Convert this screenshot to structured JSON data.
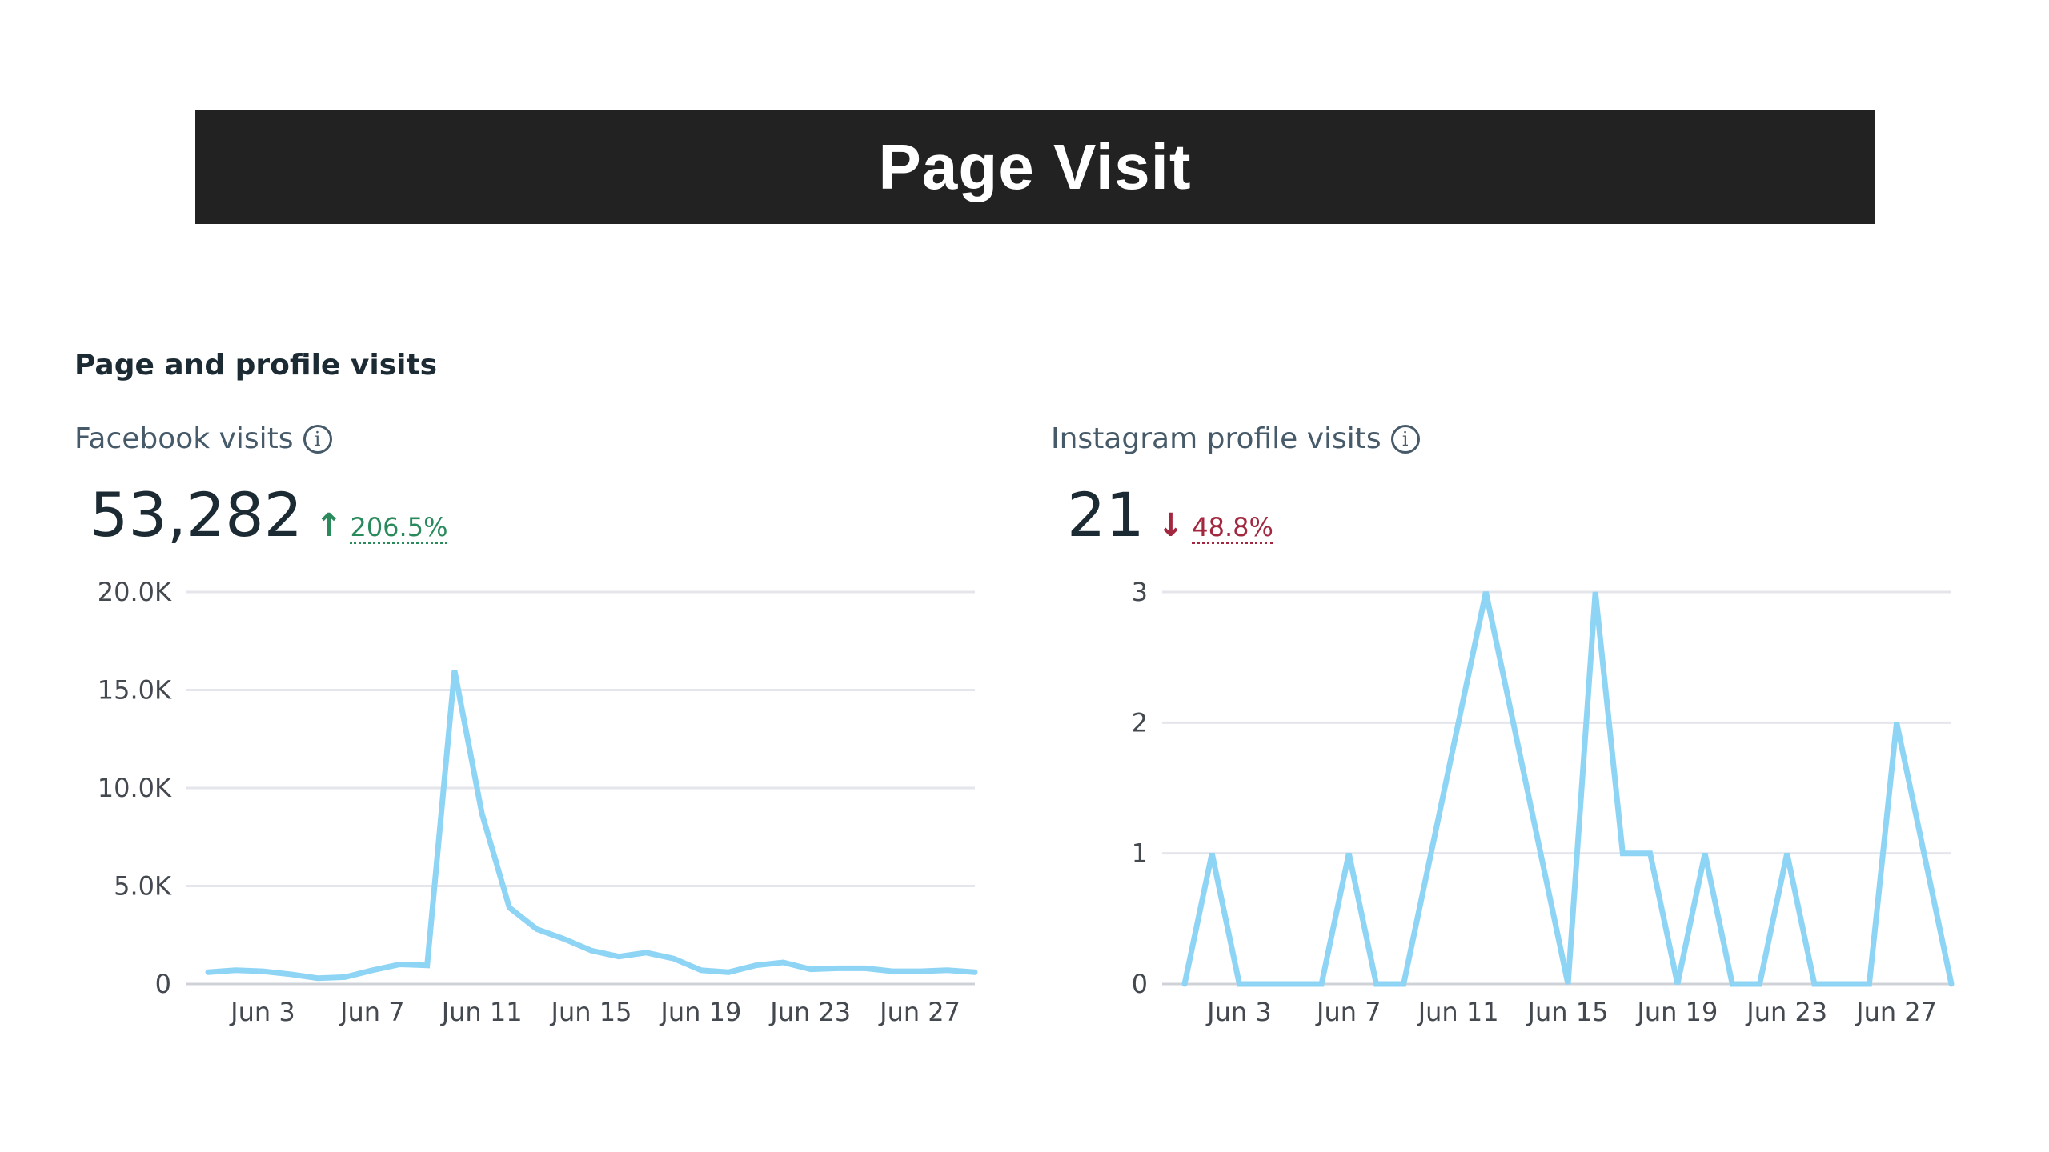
{
  "banner": {
    "title": "Page Visit"
  },
  "section": {
    "heading": "Page and profile visits"
  },
  "panels": [
    {
      "label": "Facebook visits",
      "value": "53,282",
      "trend": {
        "direction": "up",
        "arrow": "↑",
        "percent": "206.5%",
        "color": "#2a8a5c"
      }
    },
    {
      "label": "Instagram profile visits",
      "value": "21",
      "trend": {
        "direction": "down",
        "arrow": "↓",
        "percent": "48.8%",
        "color": "#a3273f"
      }
    }
  ],
  "icons": {
    "info": "info-circle-icon"
  },
  "colors": {
    "line": "#8ed4f5",
    "grid": "#e4e6eb",
    "banner": "#222222"
  },
  "chart_data": [
    {
      "type": "line",
      "x": [
        "Jun 1",
        "Jun 2",
        "Jun 3",
        "Jun 4",
        "Jun 5",
        "Jun 6",
        "Jun 7",
        "Jun 8",
        "Jun 9",
        "Jun 10",
        "Jun 11",
        "Jun 12",
        "Jun 13",
        "Jun 14",
        "Jun 15",
        "Jun 16",
        "Jun 17",
        "Jun 18",
        "Jun 19",
        "Jun 20",
        "Jun 21",
        "Jun 22",
        "Jun 23",
        "Jun 24",
        "Jun 25",
        "Jun 26",
        "Jun 27",
        "Jun 28",
        "Jun 29"
      ],
      "x_tick_labels": [
        "Jun 3",
        "Jun 7",
        "Jun 11",
        "Jun 15",
        "Jun 19",
        "Jun 23",
        "Jun 27"
      ],
      "y_tick_labels": [
        "0",
        "5.0K",
        "10.0K",
        "15.0K",
        "20.0K"
      ],
      "series": [
        {
          "values": [
            600,
            700,
            650,
            500,
            300,
            350,
            700,
            1000,
            950,
            16000,
            8700,
            3900,
            2800,
            2300,
            1700,
            1400,
            1600,
            1300,
            700,
            600,
            950,
            1100,
            750,
            800,
            800,
            650,
            650,
            700,
            600
          ]
        }
      ],
      "ylim": [
        0,
        20000
      ],
      "grid": true
    },
    {
      "type": "line",
      "x": [
        "Jun 1",
        "Jun 2",
        "Jun 3",
        "Jun 4",
        "Jun 5",
        "Jun 6",
        "Jun 7",
        "Jun 8",
        "Jun 9",
        "Jun 10",
        "Jun 11",
        "Jun 12",
        "Jun 13",
        "Jun 14",
        "Jun 15",
        "Jun 16",
        "Jun 17",
        "Jun 18",
        "Jun 19",
        "Jun 20",
        "Jun 21",
        "Jun 22",
        "Jun 23",
        "Jun 24",
        "Jun 25",
        "Jun 26",
        "Jun 27",
        "Jun 28",
        "Jun 29"
      ],
      "x_tick_labels": [
        "Jun 3",
        "Jun 7",
        "Jun 11",
        "Jun 15",
        "Jun 19",
        "Jun 23",
        "Jun 27"
      ],
      "y_tick_labels": [
        "0",
        "1",
        "2",
        "3"
      ],
      "series": [
        {
          "values": [
            0,
            1,
            0,
            0,
            0,
            0,
            1,
            0,
            0,
            1,
            2,
            3,
            2,
            1,
            0,
            3,
            1,
            1,
            0,
            1,
            0,
            0,
            1,
            0,
            0,
            0,
            2,
            1,
            0
          ]
        }
      ],
      "ylim": [
        0,
        3
      ],
      "grid": true
    }
  ]
}
